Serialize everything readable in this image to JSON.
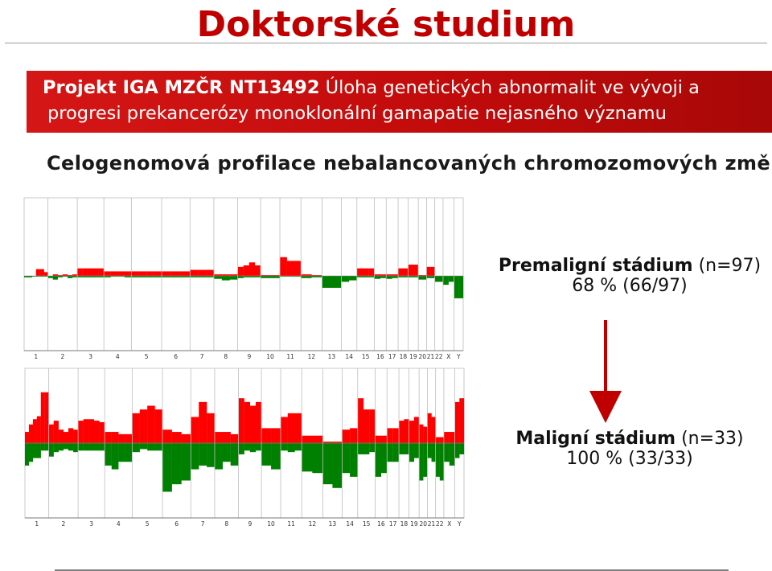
{
  "slide": {
    "title": "Doktorské studium",
    "banner": {
      "line1_bold": "Projekt IGA MZČR NT13492",
      "line1_rest": "Úloha genetických abnormalit ve vývoji a",
      "line2": "progresi prekancerózy monoklonální gamapatie nejasného významu"
    },
    "subtitle": "Celogenomová profilace nebalancovaných chromozomových změn",
    "stages": [
      {
        "name": "Premaligní stádium",
        "n": " (n=97)",
        "stat": "68 % (66/97)"
      },
      {
        "name": "Maligní stádium",
        "n": " (n=33)",
        "stat": "100 % (33/33)"
      }
    ]
  },
  "colors": {
    "title": "#c00000",
    "banner": "#c81010",
    "gain": "#ff0000",
    "loss": "#008000",
    "arrow": "#c00000"
  },
  "chart_data": [
    {
      "type": "bar",
      "panel": "Premaligní stádium",
      "chromosomes": [
        "1",
        "2",
        "3",
        "4",
        "5",
        "6",
        "7",
        "8",
        "9",
        "10",
        "11",
        "12",
        "13",
        "14",
        "15",
        "16",
        "17",
        "18",
        "19",
        "20",
        "21",
        "22",
        "X",
        "Y"
      ],
      "value_unit": "relative frequency (0-1) of gain (positive) / loss (negative)",
      "ylim": [
        -1,
        1
      ],
      "gain_segments": [
        {
          "chr": "1",
          "values": [
            0,
            0,
            0,
            0.09,
            0.09,
            0.05
          ]
        },
        {
          "chr": "2",
          "values": [
            0,
            0.02,
            0.01,
            0.02,
            0.01,
            0.02
          ]
        },
        {
          "chr": "3",
          "values": [
            0.1,
            0.1,
            0.1,
            0.1,
            0.1
          ]
        },
        {
          "chr": "4",
          "values": [
            0.06,
            0.06,
            0.06,
            0.06
          ]
        },
        {
          "chr": "5",
          "values": [
            0.06,
            0.06,
            0.06,
            0.06
          ]
        },
        {
          "chr": "6",
          "values": [
            0.06,
            0.06,
            0.06
          ]
        },
        {
          "chr": "7",
          "values": [
            0.08,
            0.08,
            0.08
          ]
        },
        {
          "chr": "8",
          "values": [
            0.02,
            0.02,
            0.02
          ]
        },
        {
          "chr": "9",
          "values": [
            0.12,
            0.14,
            0.18,
            0.14
          ]
        },
        {
          "chr": "10",
          "values": [
            0.01,
            0.01
          ]
        },
        {
          "chr": "11",
          "values": [
            0.25,
            0.2,
            0.2
          ]
        },
        {
          "chr": "12",
          "values": [
            0.02,
            0.01
          ]
        },
        {
          "chr": "13",
          "values": [
            0,
            0
          ]
        },
        {
          "chr": "14",
          "values": [
            0,
            0
          ]
        },
        {
          "chr": "15",
          "values": [
            0.1,
            0.1,
            0.1
          ]
        },
        {
          "chr": "16",
          "values": [
            0.02,
            0.02
          ]
        },
        {
          "chr": "17",
          "values": [
            0.02,
            0.02
          ]
        },
        {
          "chr": "18",
          "values": [
            0.1,
            0.1
          ]
        },
        {
          "chr": "19",
          "values": [
            0.15,
            0.15
          ]
        },
        {
          "chr": "20",
          "values": [
            0.01,
            0.01
          ]
        },
        {
          "chr": "21",
          "values": [
            0.12,
            0.12
          ]
        },
        {
          "chr": "22",
          "values": [
            0,
            0
          ]
        },
        {
          "chr": "X",
          "values": [
            0,
            0
          ]
        },
        {
          "chr": "Y",
          "values": [
            0,
            0
          ]
        }
      ],
      "loss_segments": [
        {
          "chr": "1",
          "values": [
            0.02,
            0.02,
            0.01,
            0.01,
            0.01,
            0.01
          ]
        },
        {
          "chr": "2",
          "values": [
            0.03,
            0.05,
            0.02,
            0.01,
            0.03,
            0.02
          ]
        },
        {
          "chr": "3",
          "values": [
            0.02,
            0.02,
            0.02,
            0.02,
            0.02
          ]
        },
        {
          "chr": "4",
          "values": [
            0.02,
            0.01,
            0.01,
            0.02
          ]
        },
        {
          "chr": "5",
          "values": [
            0.02,
            0.02,
            0.02,
            0.02
          ]
        },
        {
          "chr": "6",
          "values": [
            0.02,
            0.02,
            0.02
          ]
        },
        {
          "chr": "7",
          "values": [
            0.02,
            0.02,
            0.02
          ]
        },
        {
          "chr": "8",
          "values": [
            0.04,
            0.06,
            0.05
          ]
        },
        {
          "chr": "9",
          "values": [
            0.03,
            0.02,
            0.02,
            0.02
          ]
        },
        {
          "chr": "10",
          "values": [
            0.03,
            0.03
          ]
        },
        {
          "chr": "11",
          "values": [
            0.01,
            0.01,
            0.01
          ]
        },
        {
          "chr": "12",
          "values": [
            0.03,
            0.02
          ]
        },
        {
          "chr": "13",
          "values": [
            0.16,
            0.16
          ]
        },
        {
          "chr": "14",
          "values": [
            0.08,
            0.06
          ]
        },
        {
          "chr": "15",
          "values": [
            0.02,
            0.02,
            0.02
          ]
        },
        {
          "chr": "16",
          "values": [
            0.04,
            0.03
          ]
        },
        {
          "chr": "17",
          "values": [
            0.04,
            0.03
          ]
        },
        {
          "chr": "18",
          "values": [
            0.02,
            0.02
          ]
        },
        {
          "chr": "19",
          "values": [
            0.02,
            0.02
          ]
        },
        {
          "chr": "20",
          "values": [
            0.05,
            0.05
          ]
        },
        {
          "chr": "21",
          "values": [
            0.03,
            0.03
          ]
        },
        {
          "chr": "22",
          "values": [
            0.08,
            0.08
          ]
        },
        {
          "chr": "X",
          "values": [
            0.12,
            0.08
          ]
        },
        {
          "chr": "Y",
          "values": [
            0.3,
            0.3
          ]
        }
      ]
    },
    {
      "type": "bar",
      "panel": "Maligní stádium",
      "chromosomes": [
        "1",
        "2",
        "3",
        "4",
        "5",
        "6",
        "7",
        "8",
        "9",
        "10",
        "11",
        "12",
        "13",
        "14",
        "15",
        "16",
        "17",
        "18",
        "19",
        "20",
        "21",
        "22",
        "X",
        "Y"
      ],
      "value_unit": "relative frequency (0-1) of gain (positive) / loss (negative)",
      "ylim": [
        -1,
        1
      ],
      "gain_segments": [
        {
          "chr": "1",
          "values": [
            0.15,
            0.25,
            0.32,
            0.36,
            0.68,
            0.68
          ]
        },
        {
          "chr": "2",
          "values": [
            0.25,
            0.3,
            0.18,
            0.15,
            0.2,
            0.18
          ]
        },
        {
          "chr": "3",
          "values": [
            0.3,
            0.32,
            0.32,
            0.3,
            0.28
          ]
        },
        {
          "chr": "4",
          "values": [
            0.15,
            0.15,
            0.12,
            0.12
          ]
        },
        {
          "chr": "5",
          "values": [
            0.4,
            0.45,
            0.5,
            0.45
          ]
        },
        {
          "chr": "6",
          "values": [
            0.18,
            0.15,
            0.12
          ]
        },
        {
          "chr": "7",
          "values": [
            0.35,
            0.55,
            0.4
          ]
        },
        {
          "chr": "8",
          "values": [
            0.15,
            0.15,
            0.12
          ]
        },
        {
          "chr": "9",
          "values": [
            0.6,
            0.55,
            0.5,
            0.55
          ]
        },
        {
          "chr": "10",
          "values": [
            0.2,
            0.2
          ]
        },
        {
          "chr": "11",
          "values": [
            0.35,
            0.4,
            0.4
          ]
        },
        {
          "chr": "12",
          "values": [
            0.1,
            0.1
          ]
        },
        {
          "chr": "13",
          "values": [
            0.02,
            0.02
          ]
        },
        {
          "chr": "14",
          "values": [
            0.18,
            0.2
          ]
        },
        {
          "chr": "15",
          "values": [
            0.6,
            0.45,
            0.45
          ]
        },
        {
          "chr": "16",
          "values": [
            0.1,
            0.1
          ]
        },
        {
          "chr": "17",
          "values": [
            0.2,
            0.2
          ]
        },
        {
          "chr": "18",
          "values": [
            0.3,
            0.32
          ]
        },
        {
          "chr": "19",
          "values": [
            0.3,
            0.35
          ]
        },
        {
          "chr": "20",
          "values": [
            0.25,
            0.22
          ]
        },
        {
          "chr": "21",
          "values": [
            0.4,
            0.35
          ]
        },
        {
          "chr": "22",
          "values": [
            0.08,
            0.08
          ]
        },
        {
          "chr": "X",
          "values": [
            0.15,
            0.15
          ]
        },
        {
          "chr": "Y",
          "values": [
            0.55,
            0.6
          ]
        }
      ],
      "loss_segments": [
        {
          "chr": "1",
          "values": [
            0.3,
            0.25,
            0.2,
            0.2,
            0.1,
            0.1
          ]
        },
        {
          "chr": "2",
          "values": [
            0.18,
            0.12,
            0.1,
            0.08,
            0.1,
            0.12
          ]
        },
        {
          "chr": "3",
          "values": [
            0.1,
            0.1,
            0.1,
            0.1,
            0.1
          ]
        },
        {
          "chr": "4",
          "values": [
            0.3,
            0.35,
            0.25,
            0.25
          ]
        },
        {
          "chr": "5",
          "values": [
            0.12,
            0.08,
            0.1,
            0.1
          ]
        },
        {
          "chr": "6",
          "values": [
            0.65,
            0.55,
            0.5
          ]
        },
        {
          "chr": "7",
          "values": [
            0.35,
            0.3,
            0.32
          ]
        },
        {
          "chr": "8",
          "values": [
            0.35,
            0.25,
            0.3
          ]
        },
        {
          "chr": "9",
          "values": [
            0.15,
            0.1,
            0.12,
            0.1
          ]
        },
        {
          "chr": "10",
          "values": [
            0.3,
            0.35
          ]
        },
        {
          "chr": "11",
          "values": [
            0.1,
            0.12,
            0.1
          ]
        },
        {
          "chr": "12",
          "values": [
            0.38,
            0.4
          ]
        },
        {
          "chr": "13",
          "values": [
            0.55,
            0.6
          ]
        },
        {
          "chr": "14",
          "values": [
            0.4,
            0.45
          ]
        },
        {
          "chr": "15",
          "values": [
            0.15,
            0.15,
            0.12
          ]
        },
        {
          "chr": "16",
          "values": [
            0.45,
            0.4
          ]
        },
        {
          "chr": "17",
          "values": [
            0.25,
            0.25
          ]
        },
        {
          "chr": "18",
          "values": [
            0.15,
            0.15
          ]
        },
        {
          "chr": "19",
          "values": [
            0.25,
            0.2
          ]
        },
        {
          "chr": "20",
          "values": [
            0.5,
            0.45
          ]
        },
        {
          "chr": "21",
          "values": [
            0.2,
            0.25
          ]
        },
        {
          "chr": "22",
          "values": [
            0.45,
            0.5
          ]
        },
        {
          "chr": "X",
          "values": [
            0.25,
            0.3
          ]
        },
        {
          "chr": "Y",
          "values": [
            0.2,
            0.15
          ]
        }
      ]
    }
  ]
}
